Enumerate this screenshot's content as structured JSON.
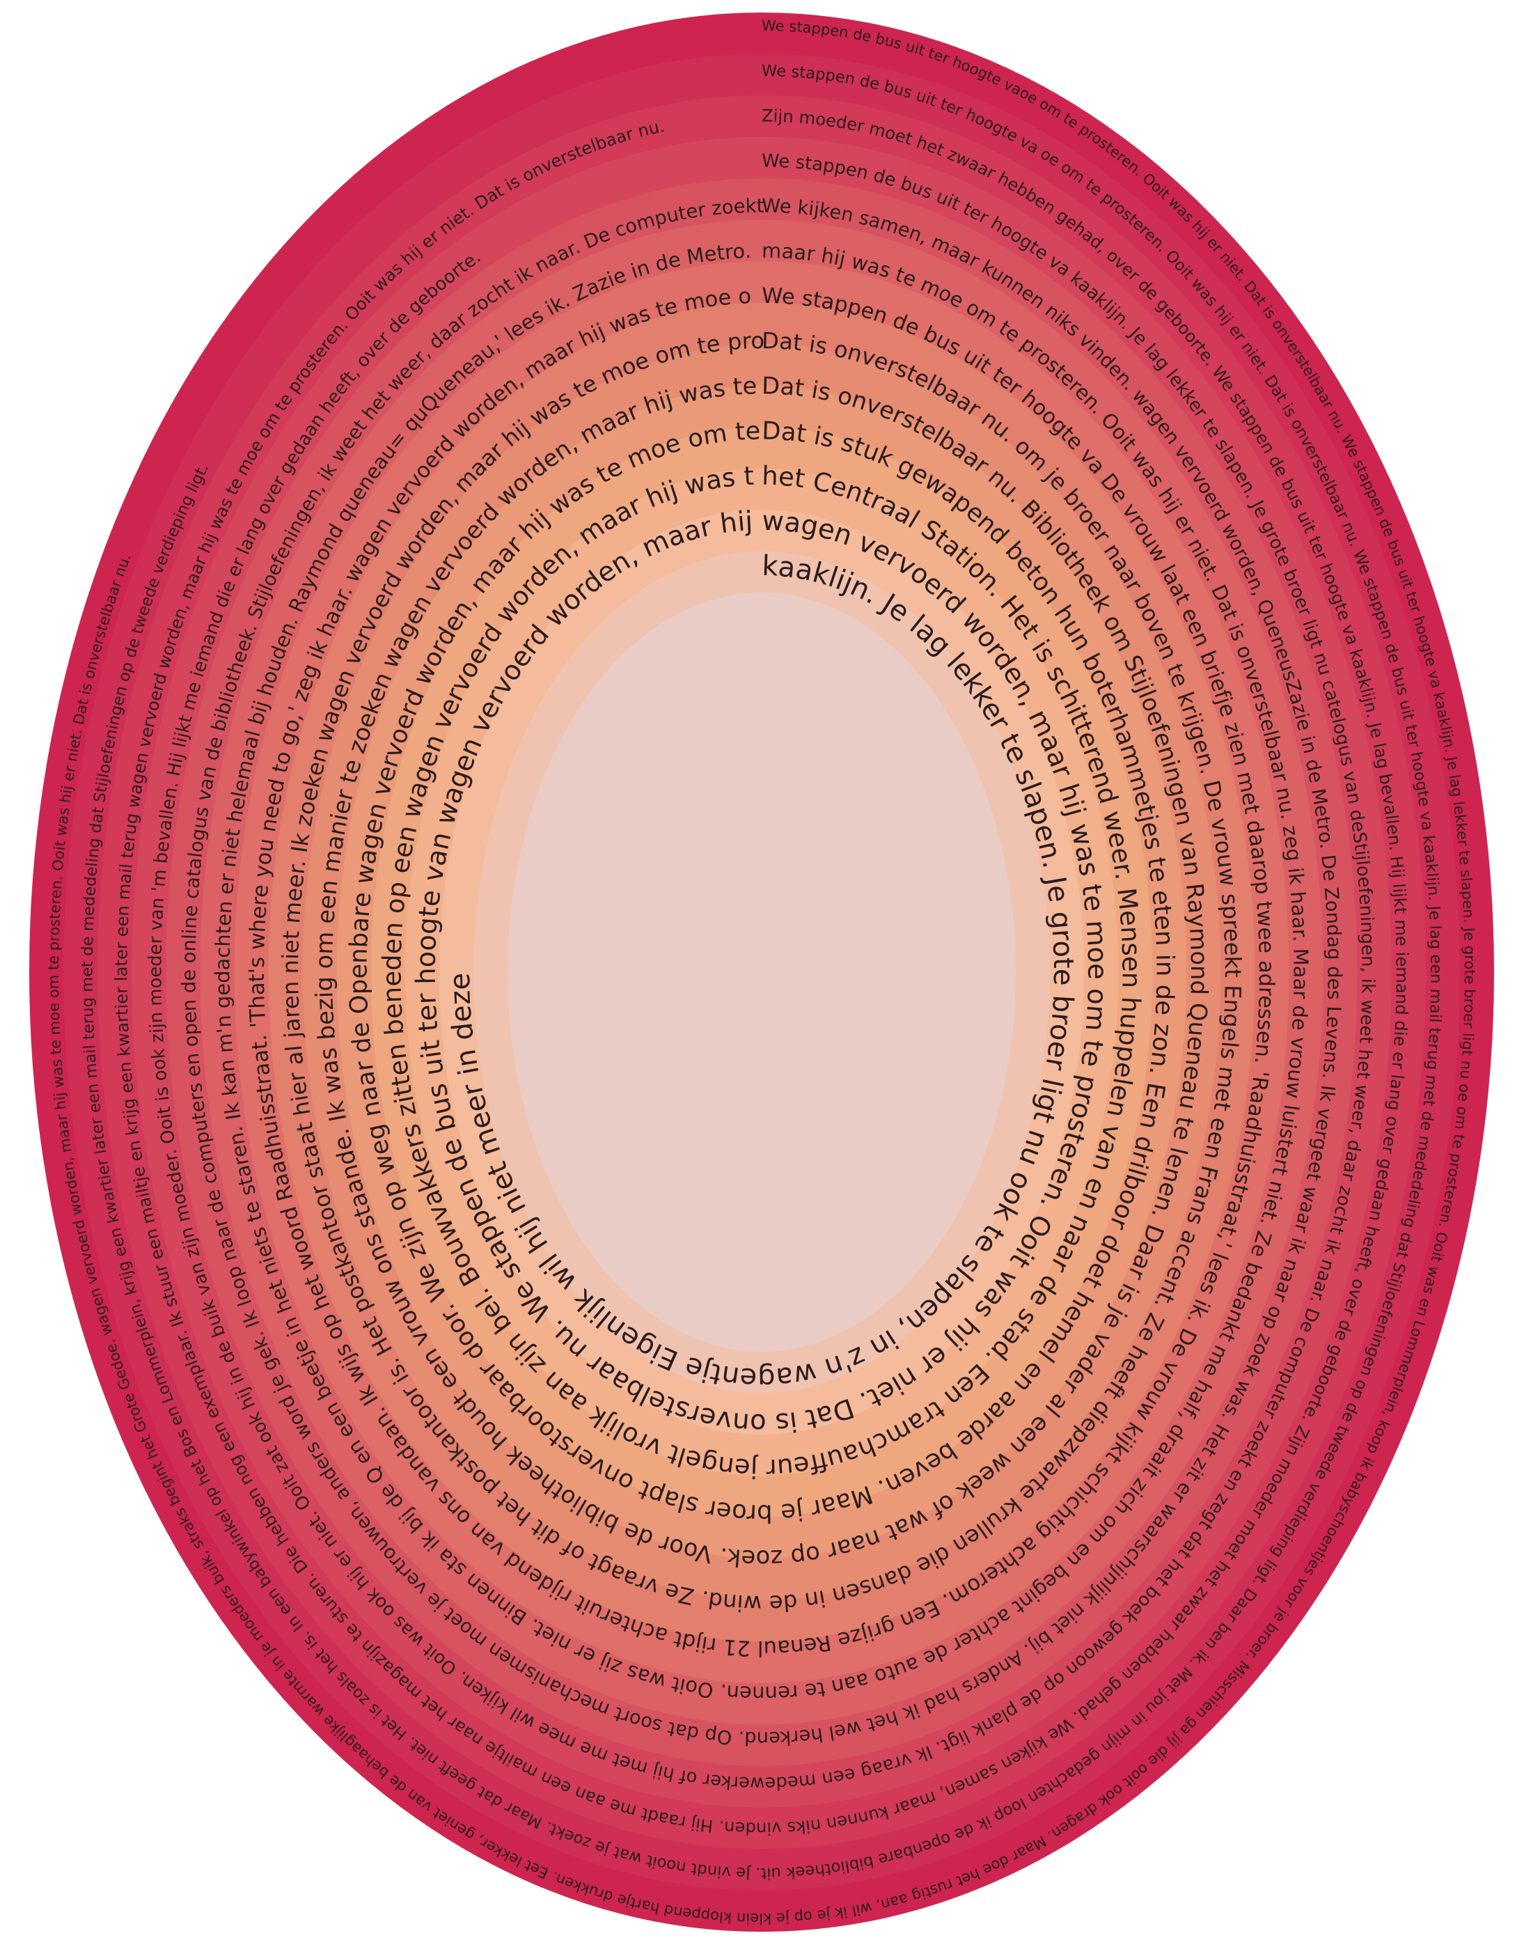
{
  "colors": {
    "background": "#ffffff",
    "text": "#2a1a1c",
    "ring_fills": [
      "#cd2550",
      "#cf2f54",
      "#d23a58",
      "#d5465c",
      "#d85360",
      "#db6164",
      "#df6f68",
      "#e27f6d",
      "#e68c72",
      "#ea9a79",
      "#efa780",
      "#f2b18c",
      "#f4bb9c",
      "#efc3b0",
      "#eaccc6"
    ]
  },
  "rings": [
    {
      "text": "We stappen de bus uit ter hoogte vaoe om te prosteren. Ooit was hij er niet. Dat is onverstelbaar nu. We stappen de bus uit ter hoogte va kaaklijn. Je lag lekker te slapen. Je grote broer ligt nu oe om te prosteren. Ooit was en Lommerplein, koop ik babyschoentjes voor je broer. Misschien ga jij die ooit ook dragen. Maar doe het rustig aan, wil ik je op je klein kloppend hartje drukken. Eet lekker, geniet van de behaaglijke warmte in je moeders buik, straks begint het Grote Gedoe. wagen vervoerd worden, maar hij was te moe om te prosteren. Ooit was hij er niet. Dat is onverstelbaar nu."
    },
    {
      "text": "We stappen de bus uit ter hoogte va oe om te prosteren. Ooit was hij er niet. Dat is onverstelbaar nu. We stappen de bus uit ter hoogte va kaaklijn. Je lag een mail terug met de mededeling dat Stijloefeningen op de tweede verdieping ligt. Daar ben ik. Met jou in mijn gedachten loop ik de openbare bibliotheek uit. Je vindt nooit wat je zoekt. Maar dat geeft niet. Het is zoals het is. In een babywinkel op het Bos en Lommerplein, krijg een kwartier later een mail terug met de mededeling dat Stijloefeningen op de tweede verdieping ligt."
    },
    {
      "text": "Zijn moeder moet het zwaar hebben gehad, over de geboorte. We stappen de bus uit ter hoogte va kaaklijn. Je lag bevallen. Hij lijkt me iemand die er lang over gedaan heeft, over de geboorte. Zijn moeder moet het zwaar hebben gehad. We kijken samen, maar kunnen niks vinden. Hij raadt me aan een mailtje naar het magazijn te sturen. Die hebben nog een exemplaar. Ik stuur een mailtje en krijg een kwartier later een mail terug wagen vervoerd worden, maar hij was te moe om te prosteren. Ooit was hij er niet. Dat is onverstelbaar nu."
    },
    {
      "text": "We stappen de bus uit ter hoogte va kaaklijn. Je lag lekker te slapen. Je grote broer ligt nu catelogus van deStijloefeningen, ik weet het weer, daar zocht ik naar. De computer zoekt en zegt dat het boek gewoon op de plank ligt. Ik vraag een medewerker of hij met me mee wil kijken. Ooit was ook hij er niet. Ooit zat ook hij in de buik van zijn moeder. Ooit is ook zijn moeder van 'm bevallen. Hij lijkt me iemand die er lang over gedaan heeft, over de geboorte."
    },
    {
      "text": "We kijken samen, maar kunnen niks vinden. wagen vervoerd worden, QueneusZazie in de Metro. De Zondag des Levens. Ik vergeet waar ik naar op zoek was. Het zit er waarschijnlijk niet bij. Anders had ik het wel herkend. Op dat soort mechanismen moet je vertrouwen, anders word je gek. Ik loop naar de computers en open de online catalogus van de bibliotheek. Stijloefeningen, ik weet het weer, daar zocht ik naar. De computer zoekt en zegt dat het boek gewoon op de"
    },
    {
      "text": "maar hij was te moe om te prosteren. Ooit was hij er niet. Dat is onverstelbaar nu. zeg ik haar. Maar de vrouw luistert niet. Ze bedankt me half, draait zich om en begint achter de auto aan te rennen. Ooit was zij er niet. Binnen sta ik bij de Q en een beetje in het niets te staren. Ik kan m'n gedachten er niet helemaal bij houden. Raymond queneau= quQueneau,' lees ik. Zazie in de Metro. De Zondag des Levens. wagen vervoerd worden, maar hij was te moe om te prosteren."
    },
    {
      "text": "We stappen de bus uit ter hoogte va De vrouw laat een briefje zien met daarop twee adressen. 'Raadhuisstraat,' lees ik. De vrouw kijkt schichtig achterom. Een grijze Renaul 21 rijdt achteruit rijdend van ons vandaan. Ik wijs op het woord Raadhuisstraat. 'That's where you need to go,' zeg ik haar. wagen vervoerd worden, maar hij was te moe om te prosteren. Ooit was hij er niet. Dat is onverstelbaar nu. We stappen de bus uit ter hoogte va"
    },
    {
      "text": "Dat is onverstelbaar nu. om je broer naar boven te krijgen. De vrouw spreekt Engels met een Frans accent. Ze heeft diepzwarte krullen die dansen in de wind. Ze vraagt of dit het postkantoor is. Het postkantoor staat hier al jaren niet meer. Ik zoeken wagen vervoerd worden, maar hij was te moe om te prosteren. Ooit was hij er niet."
    },
    {
      "text": "Dat is onverstelbaar nu. Bibliotheek om Stijloefeningen van Raymond Queneau te lenen. Daar is je vader al een week of wat naar op zoek. Voor de bibliotheek houdt een vrouw ons staande. Ik was bezig om een manier te zoeken wagen vervoerd worden, maar hij was te moe om te prosteren. Ooit was hij er niet."
    },
    {
      "text": "Dat is stuk gewapend beton hun boterhammetjes te eten in de zon. Een drilboor doet hemel en aarde beven. Maar je broer slapt onverstoorbaar door. We zijn op weg naar de Openbare wagen vervoerd worden, maar hij was te moe om te prosteren. Ooit was hij er niet."
    },
    {
      "text": "het Centraal Station. Het is schitterend weer. Mensen huppelen van en naar de stad. Een tramchauffeur jengelt vrolijk aan zijn bel. Bouwvakkers zitten beneden op een wagen vervoerd worden, maar hij was te moe om te prosteren. Ooit was hij er"
    },
    {
      "text": "wagen vervoerd worden, maar hij was te moe om te prosteren. Ooit was hij er niet. Dat is onverstelbaar nu. We stappen de bus uit ter hoogte van wagen vervoerd worden, maar hij"
    },
    {
      "text": "kaaklijn. Je lag lekker te slapen. Je grote broer ligt nu ook te slapen, in z'n wagentje Eigenlijk wil hij niet meer in deze"
    }
  ]
}
